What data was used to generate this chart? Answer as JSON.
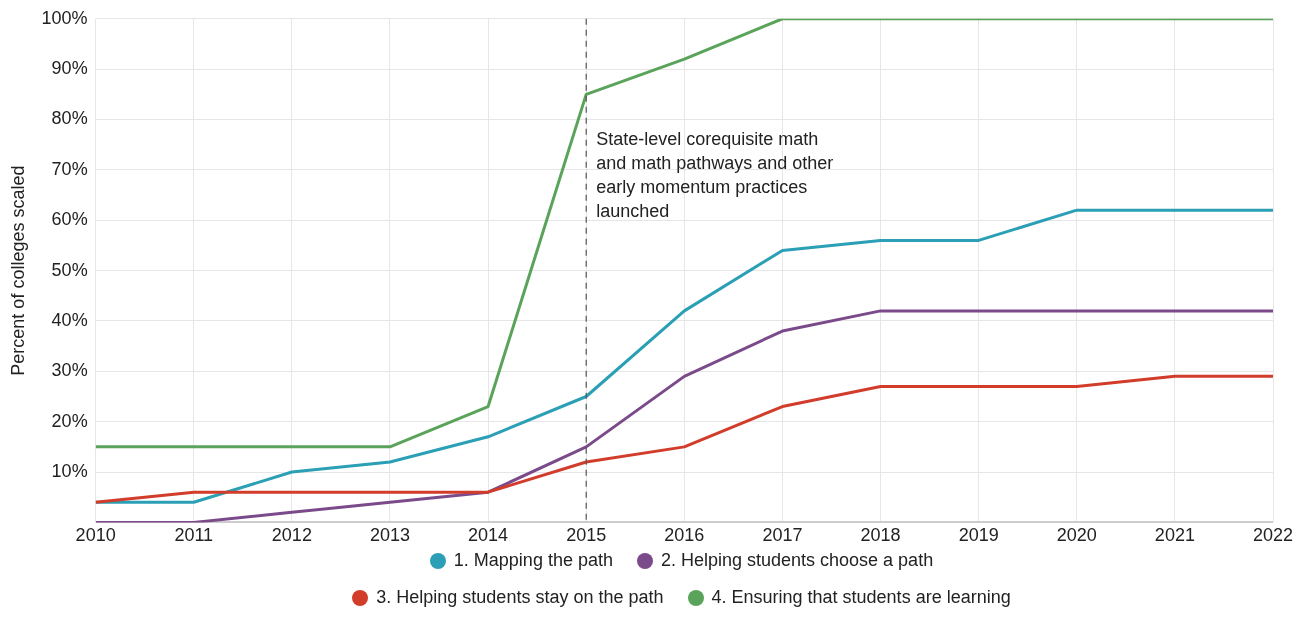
{
  "chart_data": {
    "type": "line",
    "ylabel": "Percent of colleges scaled",
    "x": [
      2010,
      2011,
      2012,
      2013,
      2014,
      2015,
      2016,
      2017,
      2018,
      2019,
      2020,
      2021,
      2022
    ],
    "series": [
      {
        "name": "1. Mapping the path",
        "color": "#2a9fb5",
        "values": [
          4,
          4,
          10,
          12,
          17,
          25,
          42,
          54,
          56,
          56,
          62,
          62,
          62
        ]
      },
      {
        "name": "2. Helping students choose a path",
        "color": "#7b4a8a",
        "values": [
          0,
          0,
          2,
          4,
          6,
          15,
          29,
          38,
          42,
          42,
          42,
          42,
          42
        ]
      },
      {
        "name": "3. Helping students stay on the path",
        "color": "#d23c2b",
        "values": [
          4,
          6,
          6,
          6,
          6,
          12,
          15,
          23,
          27,
          27,
          27,
          29,
          29
        ]
      },
      {
        "name": "4. Ensuring that students are learning",
        "color": "#5aa35a",
        "values": [
          15,
          15,
          15,
          15,
          23,
          85,
          92,
          100,
          100,
          100,
          100,
          100,
          100
        ]
      }
    ],
    "xlim": [
      2010,
      2022
    ],
    "xticks": [
      2010,
      2011,
      2012,
      2013,
      2014,
      2015,
      2016,
      2017,
      2018,
      2019,
      2020,
      2021,
      2022
    ],
    "ylim": [
      0,
      100
    ],
    "yticks": [
      {
        "value": 0,
        "label": null
      },
      {
        "value": 10,
        "label": "10%"
      },
      {
        "value": 20,
        "label": "20%"
      },
      {
        "value": 30,
        "label": "30%"
      },
      {
        "value": 40,
        "label": "40%"
      },
      {
        "value": 50,
        "label": "50%"
      },
      {
        "value": 60,
        "label": "60%"
      },
      {
        "value": 70,
        "label": "70%"
      },
      {
        "value": 80,
        "label": "80%"
      },
      {
        "value": 90,
        "label": "90%"
      },
      {
        "value": 100,
        "label": "100%"
      }
    ],
    "grid": true,
    "legend": "bottom",
    "marker": "none",
    "line_style": "solid",
    "ref_lines": [
      {
        "axis": "x",
        "value": 2015,
        "label": "State-level corequisite math and math pathways and other early momentum practices launched",
        "color": "#555555",
        "line_style": "dashed"
      }
    ]
  }
}
